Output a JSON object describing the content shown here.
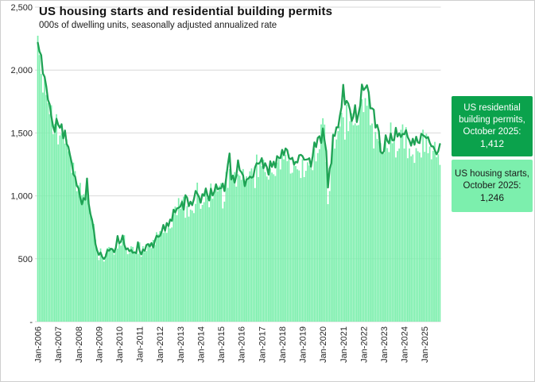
{
  "window": {
    "background": "#ffffff",
    "border_color": "#cfcfcf"
  },
  "legend": {
    "permits_box": {
      "label": "US residential building permits, October 2025:",
      "value": "1,412",
      "bg": "#0ba24c",
      "text_color": "#ffffff"
    },
    "starts_box": {
      "label": "US housing starts, October 2025:",
      "value": "1,246",
      "bg": "#7cefad",
      "text_color": "#1a1a1a"
    }
  },
  "chart_data": {
    "type": "bar",
    "title": "US housing starts and residential building permits",
    "subtitle": "000s of dwelling units, seasonally adjusted annualized rate",
    "xlabel": "",
    "ylabel": "",
    "ylim": [
      0,
      2500
    ],
    "grid": "horizontal",
    "grid_color": "#d9d9d9",
    "axis_text_color": "#262626",
    "x_unit": "monthly, Jan-2006 through Oct-2025",
    "x_tick_labels": [
      "Jan-2006",
      "Jan-2007",
      "Jan-2008",
      "Jan-2009",
      "Jan-2010",
      "Jan-2011",
      "Jan-2012",
      "Jan-2013",
      "Jan-2014",
      "Jan-2015",
      "Jan-2016",
      "Jan-2017",
      "Jan-2018",
      "Jan-2019",
      "Jan-2020",
      "Jan-2021",
      "Jan-2022",
      "Jan-2023",
      "Jan-2024",
      "Jan-2025"
    ],
    "y_ticks": {
      "labels": [
        "-",
        "500",
        "1,000",
        "1,500",
        "2,000",
        "2,500"
      ],
      "values": [
        0,
        500,
        1000,
        1500,
        2000,
        2500
      ]
    },
    "series": [
      {
        "name": "US housing starts",
        "type": "bar",
        "color": "#7cefad",
        "values": [
          2273,
          2119,
          1969,
          1821,
          1942,
          1802,
          1737,
          1650,
          1720,
          1491,
          1570,
          1649,
          1409,
          1480,
          1495,
          1490,
          1415,
          1448,
          1354,
          1330,
          1183,
          1264,
          1197,
          1037,
          1084,
          1103,
          1005,
          1013,
          973,
          1046,
          923,
          844,
          820,
          777,
          652,
          560,
          490,
          582,
          505,
          478,
          540,
          585,
          594,
          586,
          585,
          534,
          588,
          581,
          614,
          604,
          636,
          687,
          583,
          536,
          546,
          599,
          594,
          543,
          545,
          539,
          630,
          517,
          600,
          554,
          561,
          608,
          623,
          585,
          650,
          610,
          711,
          694,
          720,
          718,
          706,
          747,
          706,
          754,
          741,
          749,
          854,
          915,
          846,
          982,
          898,
          969,
          994,
          826,
          919,
          835,
          891,
          883,
          863,
          936,
          1105,
          999,
          897,
          928,
          950,
          1039,
          984,
          909,
          1098,
          977,
          1026,
          1092,
          1036,
          1081,
          1101,
          900,
          954,
          1190,
          1063,
          1213,
          1147,
          1137,
          1189,
          1073,
          1171,
          1160,
          1128,
          1213,
          1113,
          1155,
          1128,
          1195,
          1218,
          1164,
          1062,
          1328,
          1149,
          1268,
          1236,
          1288,
          1189,
          1154,
          1129,
          1217,
          1185,
          1172,
          1158,
          1265,
          1303,
          1210,
          1334,
          1290,
          1327,
          1276,
          1329,
          1177,
          1184,
          1279,
          1237,
          1211,
          1202,
          1142,
          1291,
          1149,
          1199,
          1267,
          1241,
          1233,
          1204,
          1375,
          1274,
          1340,
          1371,
          1568,
          1617,
          1567,
          1269,
          934,
          1038,
          1273,
          1497,
          1376,
          1448,
          1514,
          1551,
          1661,
          1625,
          1447,
          1725,
          1514,
          1594,
          1657,
          1562,
          1576,
          1559,
          1563,
          1706,
          1768,
          1666,
          1777,
          1716,
          1805,
          1562,
          1575,
          1377,
          1508,
          1453,
          1434,
          1419,
          1348,
          1340,
          1436,
          1380,
          1348,
          1583,
          1418,
          1451,
          1305,
          1356,
          1376,
          1525,
          1568,
          1376,
          1546,
          1299,
          1377,
          1315,
          1329,
          1262,
          1379,
          1355,
          1344,
          1305,
          1526,
          1350,
          1494,
          1339,
          1392,
          1291,
          1358,
          1429,
          1307,
          1330,
          1246
        ]
      },
      {
        "name": "US residential building permits",
        "type": "line",
        "color": "#1fa254",
        "values": [
          2217,
          2147,
          2118,
          1973,
          1946,
          1869,
          1763,
          1727,
          1629,
          1553,
          1508,
          1613,
          1566,
          1541,
          1569,
          1457,
          1520,
          1413,
          1389,
          1322,
          1261,
          1170,
          1152,
          1080,
          1061,
          984,
          932,
          982,
          969,
          1138,
          937,
          857,
          805,
          730,
          615,
          564,
          531,
          550,
          513,
          498,
          518,
          570,
          564,
          580,
          575,
          551,
          589,
          681,
          622,
          637,
          685,
          610,
          574,
          583,
          559,
          571,
          547,
          552,
          544,
          631,
          563,
          534,
          574,
          563,
          609,
          617,
          597,
          625,
          589,
          644,
          683,
          674,
          682,
          715,
          769,
          723,
          784,
          760,
          812,
          801,
          890,
          868,
          900,
          905,
          915,
          952,
          890,
          1005,
          985,
          918,
          954,
          926,
          974,
          1039,
          1017,
          991,
          945,
          1014,
          1000,
          1059,
          1005,
          963,
          1057,
          1003,
          1031,
          1092,
          1052,
          1060,
          1060,
          1098,
          1038,
          1140,
          1250,
          1337,
          1130,
          1161,
          1105,
          1161,
          1282,
          1204,
          1188,
          1162,
          1077,
          1130,
          1136,
          1153,
          1144,
          1152,
          1225,
          1260,
          1255,
          1266,
          1300,
          1219,
          1260,
          1228,
          1168,
          1275,
          1230,
          1272,
          1225,
          1316,
          1303,
          1300,
          1366,
          1323,
          1377,
          1364,
          1301,
          1292,
          1303,
          1249,
          1270,
          1265,
          1322,
          1326,
          1316,
          1287,
          1288,
          1290,
          1299,
          1232,
          1317,
          1425,
          1387,
          1461,
          1474,
          1420,
          1536,
          1438,
          1356,
          1066,
          1216,
          1258,
          1483,
          1476,
          1545,
          1544,
          1635,
          1704,
          1883,
          1726,
          1755,
          1733,
          1683,
          1594,
          1630,
          1721,
          1586,
          1653,
          1717,
          1885,
          1841,
          1857,
          1879,
          1823,
          1695,
          1696,
          1685,
          1542,
          1564,
          1512,
          1351,
          1337,
          1354,
          1482,
          1437,
          1417,
          1496,
          1441,
          1443,
          1541,
          1471,
          1498,
          1467,
          1493,
          1489,
          1523,
          1467,
          1440,
          1399,
          1454,
          1406,
          1470,
          1425,
          1419,
          1493,
          1482,
          1473,
          1459,
          1467,
          1422,
          1394,
          1393,
          1362,
          1330,
          1355,
          1412
        ]
      }
    ]
  }
}
